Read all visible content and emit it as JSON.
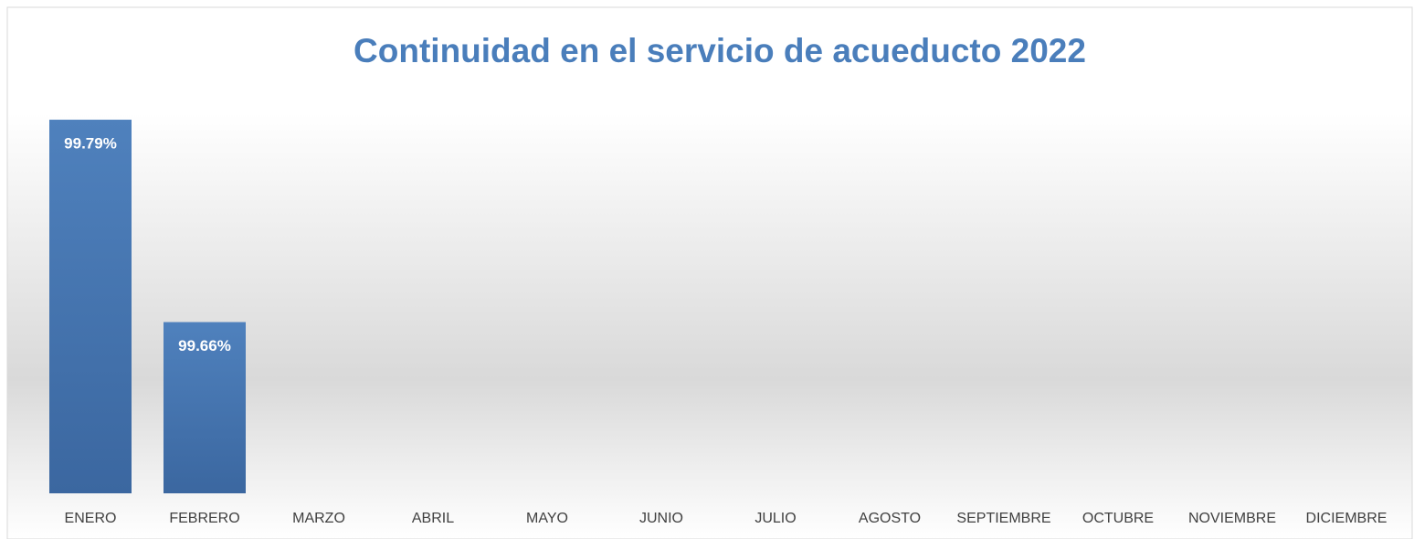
{
  "chart_data": {
    "type": "bar",
    "title": "Continuidad en el servicio de acueducto 2022",
    "categories": [
      "ENERO",
      "FEBRERO",
      "MARZO",
      "ABRIL",
      "MAYO",
      "JUNIO",
      "JULIO",
      "AGOSTO",
      "SEPTIEMBRE",
      "OCTUBRE",
      "NOVIEMBRE",
      "DICIEMBRE"
    ],
    "values": [
      99.79,
      99.66,
      null,
      null,
      null,
      null,
      null,
      null,
      null,
      null,
      null,
      null
    ],
    "value_labels": [
      "99.79%",
      "99.66%",
      null,
      null,
      null,
      null,
      null,
      null,
      null,
      null,
      null,
      null
    ],
    "color": "#4f81bd",
    "ylim": [
      99.55,
      99.8
    ]
  }
}
